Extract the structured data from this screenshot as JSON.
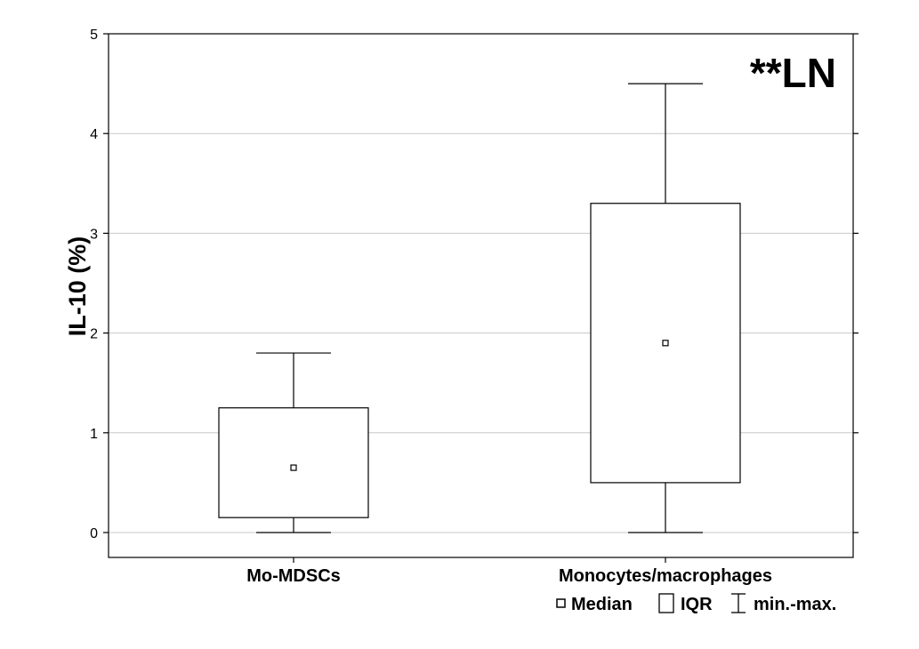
{
  "chart_data": {
    "type": "box",
    "ylabel": "IL-10 (%)",
    "ylim": [
      0,
      5
    ],
    "yticks": [
      0,
      1,
      2,
      3,
      4,
      5
    ],
    "grid": true,
    "annotation": "**LN",
    "categories": [
      "Mo-MDSCs",
      "Monocytes/macrophages"
    ],
    "boxes": [
      {
        "category": "Mo-MDSCs",
        "min": 0,
        "q1": 0.15,
        "median": 0.65,
        "q3": 1.25,
        "max": 1.8
      },
      {
        "category": "Monocytes/macrophages",
        "min": 0,
        "q1": 0.5,
        "median": 1.9,
        "q3": 3.3,
        "max": 4.5
      }
    ],
    "legend": {
      "placement": "bottom-right",
      "items": [
        {
          "symbol": "median-marker",
          "label": "Median"
        },
        {
          "symbol": "box",
          "label": "IQR"
        },
        {
          "symbol": "whisker",
          "label": "min.-max."
        }
      ]
    }
  }
}
